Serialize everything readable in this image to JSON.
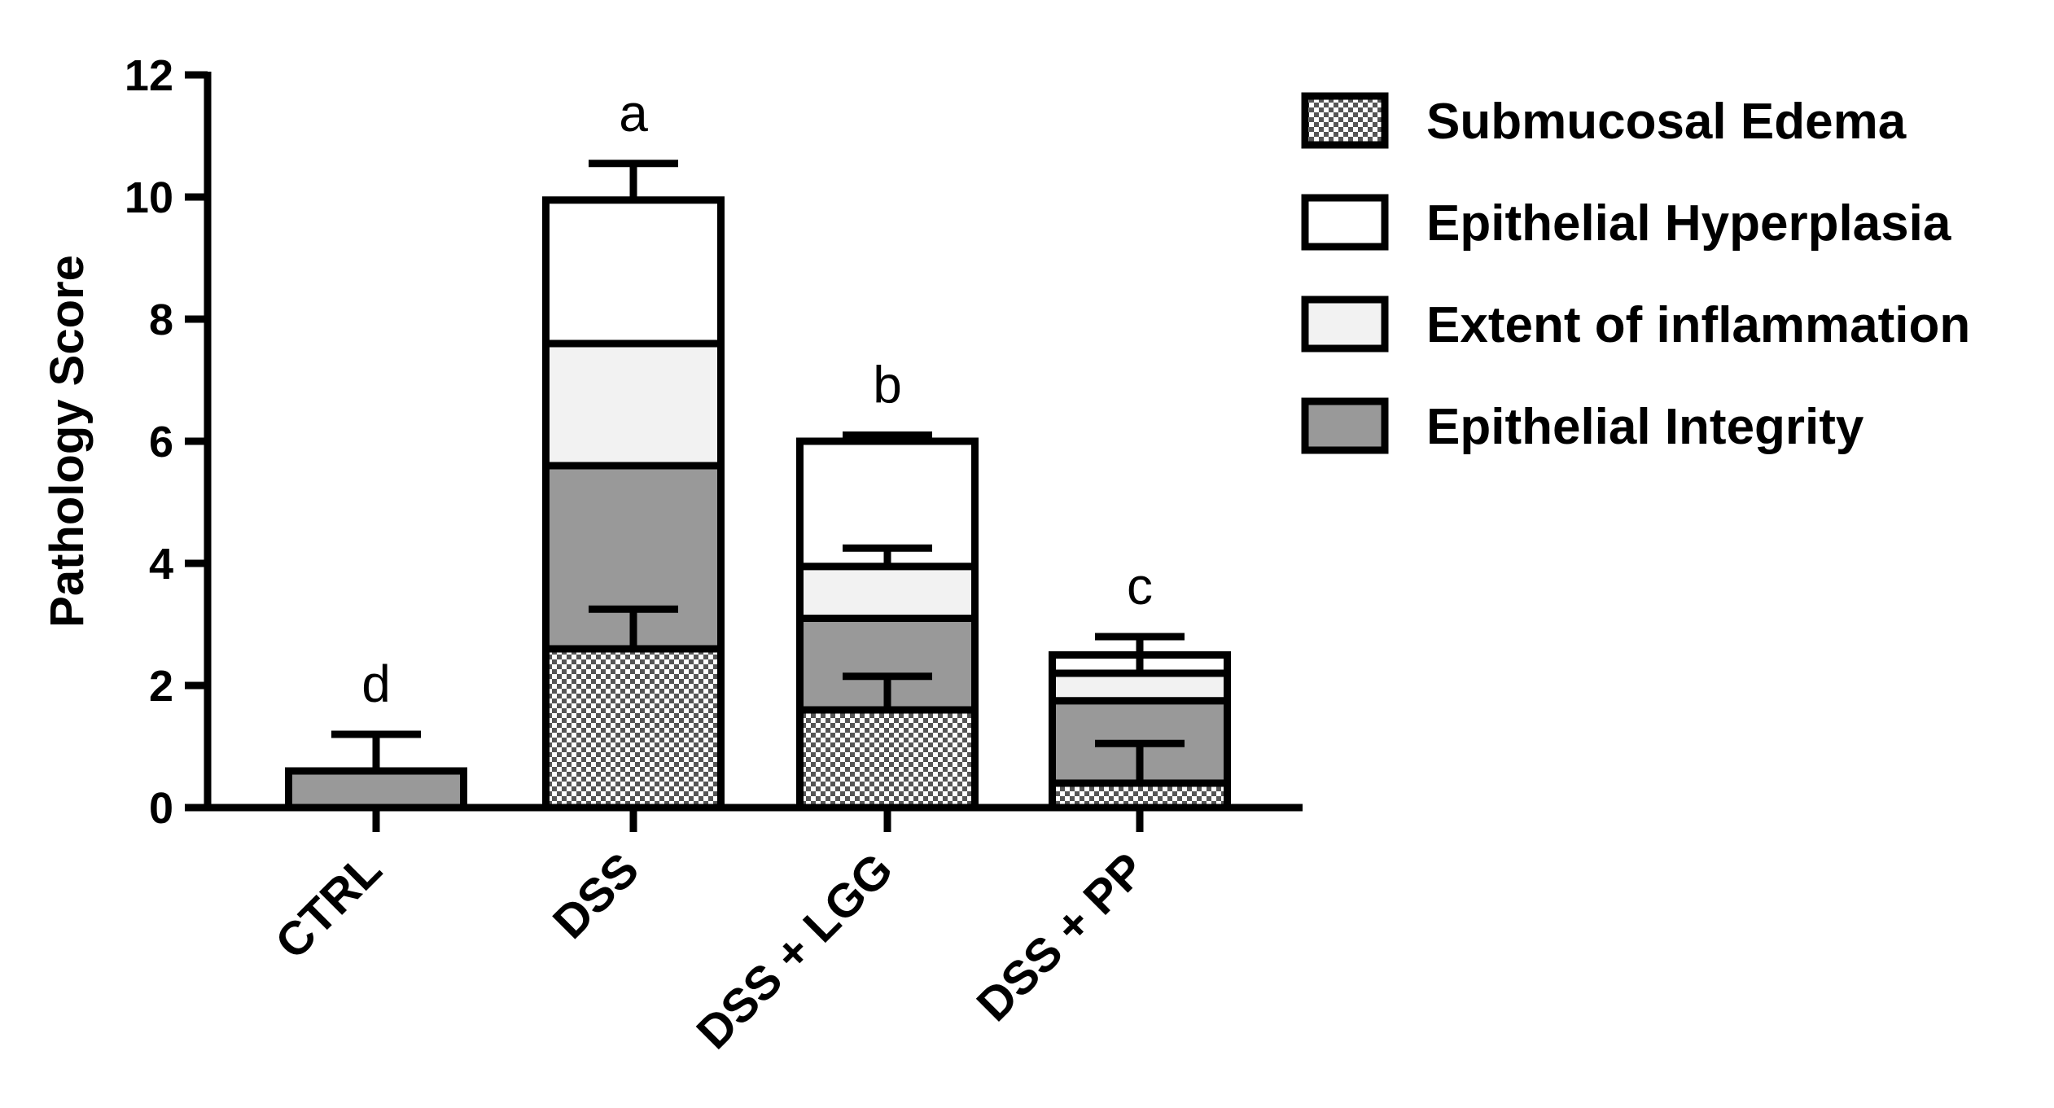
{
  "chart_data": {
    "type": "bar",
    "stacked": true,
    "ylabel": "Pathology Score",
    "ylim": [
      0,
      12
    ],
    "yticks": [
      "0",
      "2",
      "4",
      "6",
      "8",
      "10",
      "12"
    ],
    "categories": [
      "CTRL",
      "DSS",
      "DSS + LGG",
      "DSS + PP"
    ],
    "significance_letters": [
      "d",
      "a",
      "b",
      "c"
    ],
    "legend_position": "right",
    "series": [
      {
        "name": "Submucosal Edema",
        "pattern": "checkered",
        "color": "#ffffff",
        "values": [
          0.0,
          2.6,
          1.6,
          0.4
        ],
        "errors": [
          0.0,
          0.65,
          0.55,
          0.65
        ]
      },
      {
        "name": "Epithelial Integrity",
        "pattern": "solid",
        "color": "#999999",
        "values": [
          0.6,
          3.0,
          1.5,
          1.35
        ],
        "errors": [
          0.6,
          0.0,
          0.0,
          0.0
        ]
      },
      {
        "name": "Extent of inflammation",
        "pattern": "solid",
        "color": "#f2f2f2",
        "values": [
          0.0,
          2.0,
          0.85,
          0.45
        ],
        "errors": [
          0.0,
          0.0,
          0.3,
          0.3
        ]
      },
      {
        "name": "Epithelial Hyperplasia",
        "pattern": "solid",
        "color": "#ffffff",
        "values": [
          0.0,
          2.35,
          2.05,
          0.3
        ],
        "errors": [
          0.0,
          0.6,
          0.1,
          0.3
        ]
      }
    ],
    "legend_order": [
      "Submucosal Edema",
      "Epithelial Hyperplasia",
      "Extent of inflammation",
      "Epithelial Integrity"
    ]
  }
}
